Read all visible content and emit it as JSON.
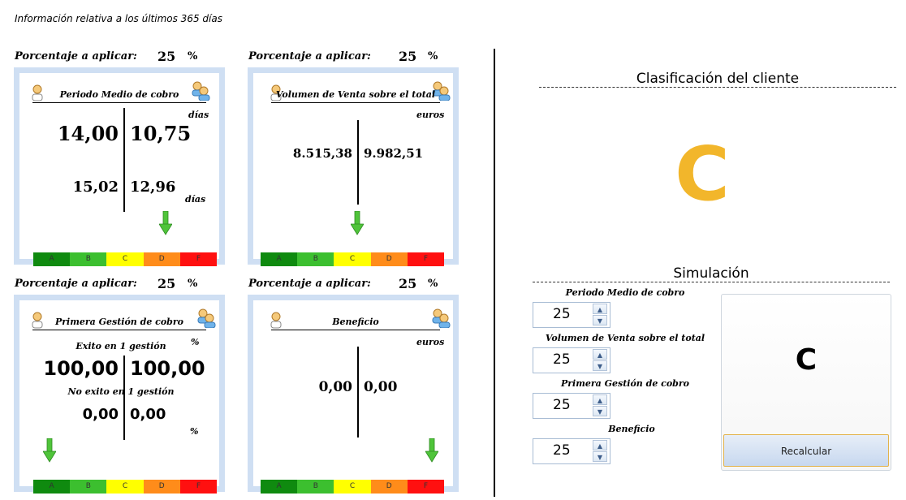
{
  "info_text": "Información relativa a los últimos 365 días",
  "colors": {
    "accent": "#f2b62b",
    "card_border": "#cfdff3",
    "arrow": "#4fc43a",
    "scale": [
      "#0f8a0f",
      "#3cbf2f",
      "#ffff00",
      "#ff8c1a",
      "#ff1010"
    ]
  },
  "scale_labels": [
    "A",
    "B",
    "C",
    "D",
    "F"
  ],
  "cards": [
    {
      "percent_label": "Porcentaje a aplicar:",
      "percent_value": "25",
      "percent_sign": "%",
      "title": "Periodo Medio de cobro",
      "unit_top": "días",
      "unit_bottom": "días",
      "top_left": "14,00",
      "top_right": "10,75",
      "bottom_left": "15,02",
      "bottom_right": "12,96",
      "arrow_grade": "D"
    },
    {
      "percent_label": "Porcentaje a aplicar:",
      "percent_value": "25",
      "percent_sign": "%",
      "title": "Volumen de Venta sobre el total",
      "unit_top": "euros",
      "left": "8.515,38",
      "right": "9.982,51",
      "arrow_grade": "C"
    },
    {
      "percent_label": "Porcentaje a aplicar:",
      "percent_value": "25",
      "percent_sign": "%",
      "title": "Primera Gestión de cobro",
      "unit_top": "%",
      "unit_bottom": "%",
      "top_caption": "Exito en 1 gestión",
      "bottom_caption": "No exito en 1 gestión",
      "top_left": "100,00",
      "top_right": "100,00",
      "bottom_left": "0,00",
      "bottom_right": "0,00",
      "arrow_grade": "A"
    },
    {
      "percent_label": "Porcentaje a aplicar:",
      "percent_value": "25",
      "percent_sign": "%",
      "title": "Beneficio",
      "unit_top": "euros",
      "left": "0,00",
      "right": "0,00",
      "arrow_grade": "F"
    }
  ],
  "classification": {
    "title": "Clasificación del cliente",
    "grade": "C"
  },
  "simulation": {
    "title": "Simulación",
    "fields": [
      {
        "label": "Periodo Medio de cobro",
        "value": "25"
      },
      {
        "label": "Volumen de Venta sobre el total",
        "value": "25"
      },
      {
        "label": "Primera Gestión de cobro",
        "value": "25"
      },
      {
        "label": "Beneficio",
        "value": "25"
      }
    ],
    "result": "C",
    "button": "Recalcular"
  }
}
